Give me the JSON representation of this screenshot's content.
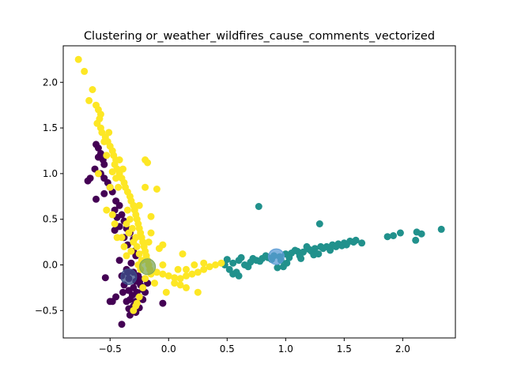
{
  "chart_data": {
    "type": "scatter",
    "title": "Clustering or_weather_wildfires_cause_comments_vectorized",
    "xlabel": "",
    "ylabel": "",
    "xlim": [
      -0.9,
      2.45
    ],
    "ylim": [
      -0.8,
      2.4
    ],
    "xticks": [
      -0.5,
      0.0,
      0.5,
      1.0,
      1.5,
      2.0
    ],
    "xtick_labels": [
      "−0.5",
      "0.0",
      "0.5",
      "1.0",
      "1.5",
      "2.0"
    ],
    "yticks": [
      -0.5,
      0.0,
      0.5,
      1.0,
      1.5,
      2.0
    ],
    "ytick_labels": [
      "−0.5",
      "0.0",
      "0.5",
      "1.0",
      "1.5",
      "2.0"
    ],
    "grid": false,
    "legend": "none",
    "colors": {
      "cluster_0": "#440154",
      "cluster_1": "#21918c",
      "cluster_2": "#fde725",
      "centroid_0": "#3b528b",
      "centroid_1": "#5b9bd5",
      "centroid_2": "#7fa85a"
    },
    "series": [
      {
        "name": "cluster_0",
        "color": "#440154",
        "points": [
          [
            -0.62,
            1.32
          ],
          [
            -0.6,
            1.28
          ],
          [
            -0.58,
            1.22
          ],
          [
            -0.56,
            1.15
          ],
          [
            -0.55,
            1.1
          ],
          [
            -0.6,
            1.18
          ],
          [
            -0.63,
            1.05
          ],
          [
            -0.58,
            1.0
          ],
          [
            -0.67,
            0.95
          ],
          [
            -0.69,
            0.92
          ],
          [
            -0.55,
            0.95
          ],
          [
            -0.52,
            0.9
          ],
          [
            -0.5,
            0.85
          ],
          [
            -0.55,
            0.78
          ],
          [
            -0.48,
            0.8
          ],
          [
            -0.45,
            0.7
          ],
          [
            -0.62,
            0.72
          ],
          [
            -0.42,
            0.65
          ],
          [
            -0.46,
            0.6
          ],
          [
            -0.4,
            0.55
          ],
          [
            -0.44,
            0.52
          ],
          [
            -0.38,
            0.48
          ],
          [
            -0.42,
            0.42
          ],
          [
            -0.36,
            0.4
          ],
          [
            -0.46,
            0.38
          ],
          [
            -0.33,
            0.35
          ],
          [
            -0.38,
            0.3
          ],
          [
            -0.3,
            0.28
          ],
          [
            -0.35,
            0.22
          ],
          [
            -0.3,
            0.15
          ],
          [
            -0.28,
            0.1
          ],
          [
            -0.42,
            0.05
          ],
          [
            -0.32,
            0.02
          ],
          [
            -0.36,
            -0.05
          ],
          [
            -0.3,
            -0.08
          ],
          [
            -0.26,
            -0.12
          ],
          [
            -0.34,
            -0.15
          ],
          [
            -0.28,
            -0.18
          ],
          [
            -0.24,
            -0.22
          ],
          [
            -0.3,
            -0.25
          ],
          [
            -0.34,
            -0.28
          ],
          [
            -0.27,
            -0.3
          ],
          [
            -0.22,
            -0.27
          ],
          [
            -0.31,
            -0.33
          ],
          [
            -0.25,
            -0.35
          ],
          [
            -0.39,
            -0.3
          ],
          [
            -0.33,
            -0.38
          ],
          [
            -0.28,
            -0.4
          ],
          [
            -0.22,
            -0.38
          ],
          [
            -0.36,
            -0.4
          ],
          [
            -0.3,
            -0.45
          ],
          [
            -0.25,
            -0.47
          ],
          [
            -0.34,
            -0.48
          ],
          [
            -0.28,
            -0.52
          ],
          [
            -0.33,
            -0.55
          ],
          [
            -0.48,
            -0.4
          ],
          [
            -0.5,
            -0.4
          ],
          [
            -0.45,
            -0.35
          ],
          [
            -0.38,
            -0.22
          ],
          [
            -0.4,
            -0.12
          ],
          [
            -0.54,
            -0.14
          ],
          [
            -0.4,
            -0.65
          ],
          [
            -0.05,
            -0.42
          ],
          [
            -0.2,
            -0.3
          ],
          [
            -0.18,
            -0.2
          ],
          [
            -0.35,
            -0.08
          ],
          [
            -0.24,
            -0.16
          ]
        ]
      },
      {
        "name": "cluster_1",
        "color": "#21918c",
        "points": [
          [
            0.48,
            0.0
          ],
          [
            0.55,
            0.02
          ],
          [
            0.6,
            0.05
          ],
          [
            0.52,
            -0.05
          ],
          [
            0.58,
            -0.08
          ],
          [
            0.65,
            0.0
          ],
          [
            0.7,
            0.03
          ],
          [
            0.75,
            0.05
          ],
          [
            0.8,
            0.07
          ],
          [
            0.85,
            0.08
          ],
          [
            0.9,
            0.1
          ],
          [
            0.95,
            0.09
          ],
          [
            1.0,
            0.12
          ],
          [
            1.05,
            0.13
          ],
          [
            1.1,
            0.15
          ],
          [
            1.15,
            0.14
          ],
          [
            1.2,
            0.17
          ],
          [
            1.25,
            0.18
          ],
          [
            1.3,
            0.2
          ],
          [
            1.35,
            0.2
          ],
          [
            1.4,
            0.22
          ],
          [
            1.45,
            0.23
          ],
          [
            1.5,
            0.24
          ],
          [
            1.55,
            0.26
          ],
          [
            1.6,
            0.27
          ],
          [
            1.65,
            0.24
          ],
          [
            0.62,
            0.08
          ],
          [
            0.68,
            -0.02
          ],
          [
            0.72,
            0.07
          ],
          [
            0.78,
            0.04
          ],
          [
            0.83,
            0.1
          ],
          [
            0.88,
            0.06
          ],
          [
            0.93,
            -0.03
          ],
          [
            0.98,
            -0.02
          ],
          [
            1.03,
            0.08
          ],
          [
            1.08,
            0.16
          ],
          [
            1.12,
            0.1
          ],
          [
            1.18,
            0.2
          ],
          [
            1.22,
            0.15
          ],
          [
            1.28,
            0.12
          ],
          [
            1.32,
            0.18
          ],
          [
            1.38,
            0.16
          ],
          [
            1.43,
            0.2
          ],
          [
            1.48,
            0.21
          ],
          [
            1.52,
            0.22
          ],
          [
            1.58,
            0.25
          ],
          [
            0.77,
            0.64
          ],
          [
            1.29,
            0.45
          ],
          [
            1.87,
            0.31
          ],
          [
            1.92,
            0.32
          ],
          [
            1.98,
            0.35
          ],
          [
            2.11,
            0.27
          ],
          [
            2.12,
            0.36
          ],
          [
            2.16,
            0.34
          ],
          [
            2.33,
            0.39
          ],
          [
            0.55,
            -0.1
          ],
          [
            0.6,
            -0.12
          ],
          [
            0.5,
            0.06
          ],
          [
            0.96,
            0.05
          ],
          [
            1.01,
            0.02
          ],
          [
            1.13,
            0.07
          ],
          [
            1.24,
            0.11
          ]
        ]
      },
      {
        "name": "cluster_2",
        "color": "#fde725",
        "points": [
          [
            -0.77,
            2.25
          ],
          [
            -0.72,
            2.12
          ],
          [
            -0.65,
            1.92
          ],
          [
            -0.68,
            1.8
          ],
          [
            -0.62,
            1.75
          ],
          [
            -0.6,
            1.7
          ],
          [
            -0.58,
            1.65
          ],
          [
            -0.59,
            1.6
          ],
          [
            -0.61,
            1.55
          ],
          [
            -0.58,
            1.5
          ],
          [
            -0.57,
            1.45
          ],
          [
            -0.54,
            1.4
          ],
          [
            -0.52,
            1.35
          ],
          [
            -0.5,
            1.3
          ],
          [
            -0.48,
            1.25
          ],
          [
            -0.47,
            1.2
          ],
          [
            -0.45,
            1.15
          ],
          [
            -0.46,
            1.1
          ],
          [
            -0.44,
            1.05
          ],
          [
            -0.42,
            1.0
          ],
          [
            -0.4,
            0.95
          ],
          [
            -0.38,
            0.9
          ],
          [
            -0.37,
            0.85
          ],
          [
            -0.35,
            0.8
          ],
          [
            -0.33,
            0.75
          ],
          [
            -0.32,
            0.7
          ],
          [
            -0.3,
            0.65
          ],
          [
            -0.29,
            0.6
          ],
          [
            -0.28,
            0.55
          ],
          [
            -0.27,
            0.5
          ],
          [
            -0.26,
            0.45
          ],
          [
            -0.25,
            0.4
          ],
          [
            -0.24,
            0.35
          ],
          [
            -0.23,
            0.3
          ],
          [
            -0.22,
            0.25
          ],
          [
            -0.21,
            0.2
          ],
          [
            -0.2,
            0.15
          ],
          [
            -0.19,
            0.1
          ],
          [
            -0.18,
            0.05
          ],
          [
            -0.17,
            0.0
          ],
          [
            -0.16,
            -0.05
          ],
          [
            -0.15,
            -0.1
          ],
          [
            -0.1,
            -0.08
          ],
          [
            -0.05,
            -0.1
          ],
          [
            0.0,
            -0.12
          ],
          [
            0.05,
            -0.14
          ],
          [
            0.1,
            -0.15
          ],
          [
            0.15,
            -0.12
          ],
          [
            0.2,
            -0.1
          ],
          [
            0.25,
            -0.08
          ],
          [
            0.3,
            -0.05
          ],
          [
            0.35,
            -0.02
          ],
          [
            0.4,
            0.0
          ],
          [
            0.45,
            0.02
          ],
          [
            0.3,
            0.02
          ],
          [
            0.22,
            0.0
          ],
          [
            0.15,
            -0.05
          ],
          [
            -0.35,
            0.6
          ],
          [
            -0.33,
            0.5
          ],
          [
            -0.36,
            0.45
          ],
          [
            -0.31,
            0.4
          ],
          [
            -0.34,
            0.35
          ],
          [
            -0.28,
            0.3
          ],
          [
            -0.3,
            0.25
          ],
          [
            -0.27,
            0.2
          ],
          [
            -0.25,
            0.12
          ],
          [
            -0.23,
            0.05
          ],
          [
            -0.26,
            0.0
          ],
          [
            -0.24,
            -0.05
          ],
          [
            -0.2,
            -0.15
          ],
          [
            -0.22,
            -0.25
          ],
          [
            -0.25,
            -0.35
          ],
          [
            -0.28,
            -0.45
          ],
          [
            -0.3,
            -0.5
          ],
          [
            -0.27,
            -0.42
          ],
          [
            -0.32,
            0.15
          ],
          [
            -0.36,
            0.1
          ],
          [
            -0.38,
            0.2
          ],
          [
            -0.4,
            0.3
          ],
          [
            -0.43,
            0.85
          ],
          [
            -0.5,
            0.85
          ],
          [
            -0.45,
            0.95
          ],
          [
            -0.42,
            1.15
          ],
          [
            -0.39,
            1.05
          ],
          [
            -0.48,
            1.02
          ],
          [
            -0.53,
            1.2
          ],
          [
            -0.55,
            1.35
          ],
          [
            -0.51,
            1.45
          ],
          [
            -0.2,
            1.15
          ],
          [
            -0.18,
            1.12
          ],
          [
            -0.2,
            0.85
          ],
          [
            -0.1,
            0.83
          ],
          [
            -0.25,
            0.65
          ],
          [
            -0.15,
            0.53
          ],
          [
            -0.05,
            0.22
          ],
          [
            -0.08,
            0.18
          ],
          [
            0.12,
            0.12
          ],
          [
            -0.05,
            0.0
          ],
          [
            0.05,
            -0.2
          ],
          [
            0.1,
            -0.22
          ],
          [
            0.15,
            -0.25
          ],
          [
            0.25,
            -0.3
          ],
          [
            -0.02,
            -0.3
          ],
          [
            0.08,
            -0.05
          ],
          [
            -0.12,
            -0.2
          ],
          [
            -0.6,
            1.0
          ],
          [
            -0.53,
            0.6
          ],
          [
            -0.48,
            0.55
          ],
          [
            -0.46,
            0.45
          ],
          [
            -0.44,
            0.3
          ],
          [
            -0.15,
            0.35
          ],
          [
            -0.17,
            0.25
          ]
        ]
      }
    ],
    "centroids": [
      {
        "name": "centroid_0",
        "color": "#3b528b",
        "x": -0.34,
        "y": -0.13
      },
      {
        "name": "centroid_1",
        "color": "#5b9bd5",
        "x": 0.92,
        "y": 0.09
      },
      {
        "name": "centroid_2",
        "color": "#7fa85a",
        "x": -0.18,
        "y": -0.02
      }
    ]
  }
}
